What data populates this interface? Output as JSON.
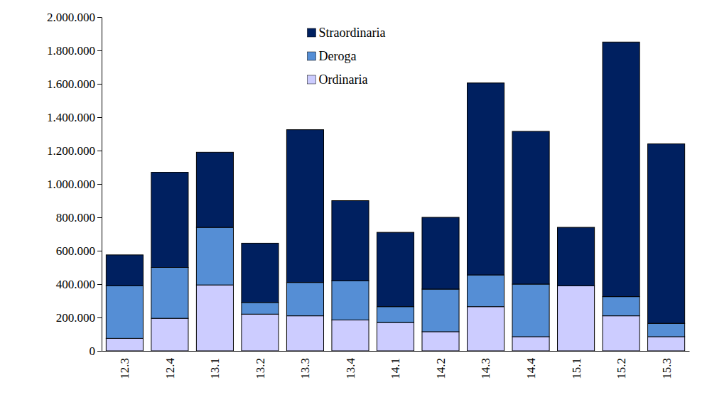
{
  "chart_data": {
    "type": "bar",
    "stacked": true,
    "legend": "top",
    "categories": [
      "12.3",
      "12.4",
      "13.1",
      "13.2",
      "13.3",
      "13.4",
      "14.1",
      "14.2",
      "14.3",
      "14.4",
      "15.1",
      "15.2",
      "15.3"
    ],
    "series": [
      {
        "name": "Ordinaria",
        "color": "#ccccff",
        "values": [
          75000,
          195000,
          395000,
          220000,
          210000,
          185000,
          170000,
          115000,
          265000,
          85000,
          390000,
          210000,
          85000
        ]
      },
      {
        "name": "Deroga",
        "color": "#558ed5",
        "values": [
          315000,
          305000,
          345000,
          70000,
          200000,
          235000,
          95000,
          255000,
          190000,
          315000,
          0,
          115000,
          80000
        ]
      },
      {
        "name": "Straordinaria",
        "color": "#002060",
        "values": [
          185000,
          570000,
          450000,
          355000,
          915000,
          480000,
          445000,
          430000,
          1150000,
          915000,
          350000,
          1525000,
          1075000
        ]
      }
    ],
    "ylim": [
      0,
      2000000
    ],
    "yticks": [
      0,
      {
        "value": 200000,
        "label": "200.000"
      },
      {
        "value": 400000,
        "label": "400.000"
      },
      {
        "value": 600000,
        "label": "600.000"
      },
      {
        "value": 800000,
        "label": "800.000"
      },
      {
        "value": 1000000,
        "label": "1.000.000"
      },
      {
        "value": 1200000,
        "label": "1.200.000"
      },
      {
        "value": 1400000,
        "label": "1.400.000"
      },
      {
        "value": 1600000,
        "label": "1.600.000"
      },
      {
        "value": 1800000,
        "label": "1.800.000"
      },
      {
        "value": 2000000,
        "label": "2.000.000"
      }
    ],
    "grid": false
  }
}
